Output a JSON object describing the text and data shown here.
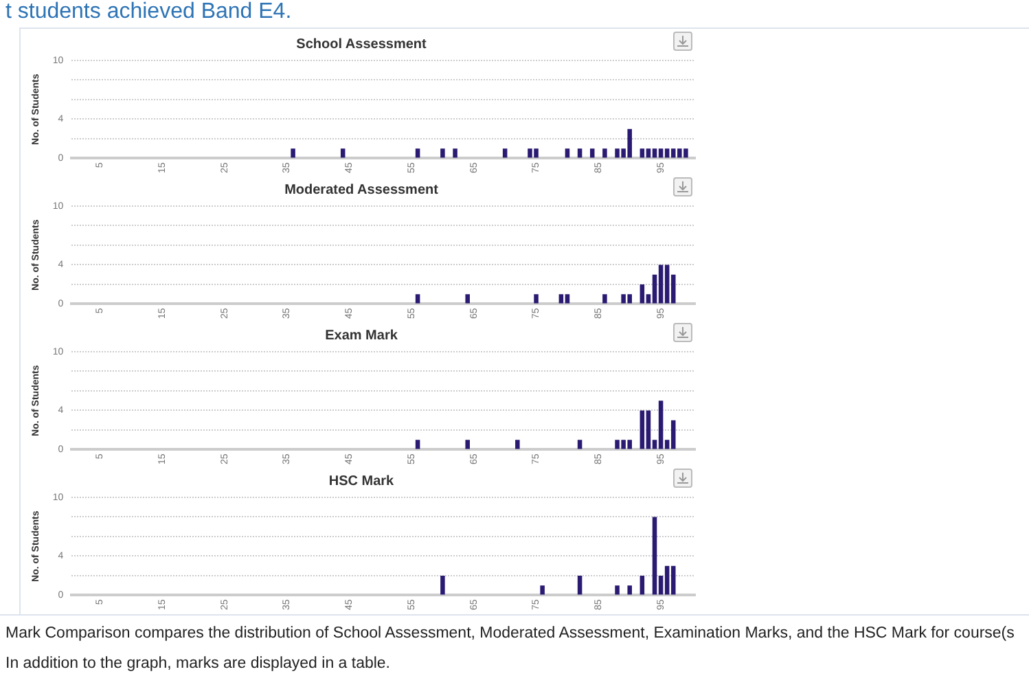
{
  "chart_data": [
    {
      "type": "bar",
      "title": "School Assessment",
      "ylabel": "No. of Students",
      "color": "#2b1a72",
      "annotations": [
        "t students achieved Band E4."
      ],
      "x": [
        36,
        44,
        56,
        60,
        62,
        70,
        74,
        75,
        80,
        82,
        84,
        86,
        88,
        89,
        90,
        92,
        93,
        94,
        95,
        96,
        97,
        98,
        99
      ],
      "values": [
        1,
        1,
        1,
        1,
        1,
        1,
        1,
        1,
        1,
        1,
        1,
        1,
        1,
        1,
        3,
        1,
        1,
        1,
        1,
        1,
        1,
        1,
        1
      ],
      "xlim": [
        0.5,
        100.5
      ],
      "xticks": [
        5,
        15,
        25,
        35,
        45,
        55,
        65,
        75,
        85,
        95
      ],
      "ylim": [
        0,
        10
      ],
      "yticks": [
        0,
        {
          "value": 2,
          "label": null
        },
        4,
        {
          "value": 6,
          "label": null
        },
        {
          "value": 8,
          "label": null
        },
        10
      ],
      "grid": "y"
    },
    {
      "type": "bar",
      "title": "Moderated Assessment",
      "ylabel": "No. of Students",
      "color": "#2b1a72",
      "x": [
        56,
        64,
        75,
        79,
        80,
        86,
        89,
        90,
        92,
        93,
        94,
        95,
        96,
        97
      ],
      "values": [
        1,
        1,
        1,
        1,
        1,
        1,
        1,
        1,
        2,
        1,
        3,
        4,
        4,
        3
      ],
      "xlim": [
        0.5,
        100.5
      ],
      "xticks": [
        5,
        15,
        25,
        35,
        45,
        55,
        65,
        75,
        85,
        95
      ],
      "ylim": [
        0,
        10
      ],
      "yticks": [
        0,
        {
          "value": 2,
          "label": null
        },
        4,
        {
          "value": 6,
          "label": null
        },
        {
          "value": 8,
          "label": null
        },
        10
      ],
      "grid": "y"
    },
    {
      "type": "bar",
      "title": "Exam Mark",
      "ylabel": "No. of Students",
      "color": "#2b1a72",
      "x": [
        56,
        64,
        72,
        82,
        88,
        89,
        90,
        92,
        93,
        94,
        95,
        96,
        97
      ],
      "values": [
        1,
        1,
        1,
        1,
        1,
        1,
        1,
        4,
        4,
        1,
        5,
        1,
        3
      ],
      "xlim": [
        0.5,
        100.5
      ],
      "xticks": [
        5,
        15,
        25,
        35,
        45,
        55,
        65,
        75,
        85,
        95
      ],
      "ylim": [
        0,
        10
      ],
      "yticks": [
        0,
        {
          "value": 2,
          "label": null
        },
        4,
        {
          "value": 6,
          "label": null
        },
        {
          "value": 8,
          "label": null
        },
        10
      ],
      "grid": "y"
    },
    {
      "type": "bar",
      "title": "HSC Mark",
      "ylabel": "No. of Students",
      "color": "#2b1a72",
      "annotations": [
        "Mark Comparison compares the distribution of School Assessment, Moderated Assessment, Examination Marks, and the HSC Mark for course(s",
        "In addition to the graph, marks are displayed in a table."
      ],
      "x": [
        60,
        76,
        82,
        88,
        90,
        92,
        94,
        95,
        96,
        97
      ],
      "values": [
        2,
        1,
        2,
        1,
        1,
        2,
        8,
        2,
        3,
        3
      ],
      "xlim": [
        0.5,
        100.5
      ],
      "xticks": [
        5,
        15,
        25,
        35,
        45,
        55,
        65,
        75,
        85,
        95
      ],
      "ylim": [
        0,
        10
      ],
      "yticks": [
        0,
        {
          "value": 2,
          "label": null
        },
        4,
        {
          "value": 6,
          "label": null
        },
        {
          "value": 8,
          "label": null
        },
        10
      ],
      "grid": "y"
    }
  ]
}
